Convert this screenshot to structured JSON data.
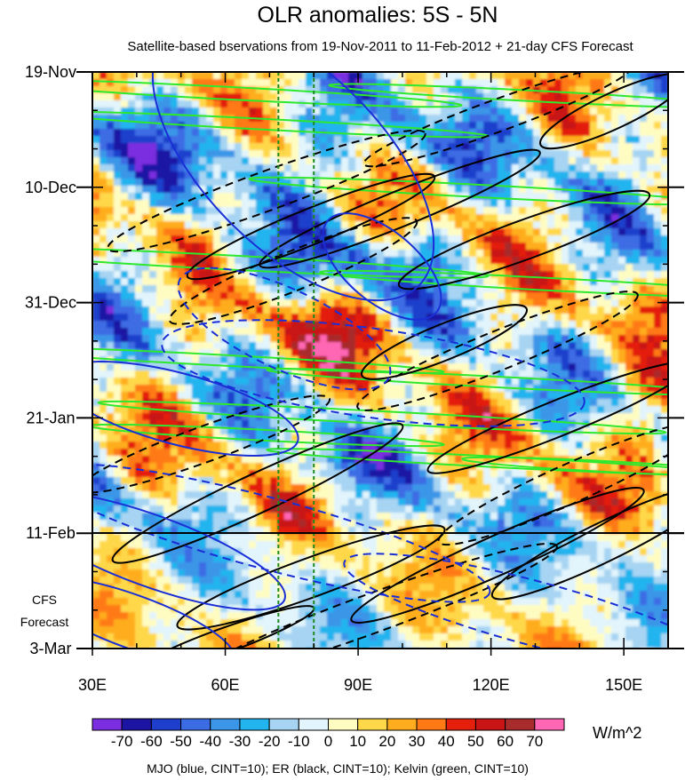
{
  "chart_data": {
    "type": "heatmap",
    "title": "OLR anomalies: 5S - 5N",
    "subtitle": "Satellite-based bservations from 19-Nov-2011 to 11-Feb-2012 + 21-day CFS Forecast",
    "x_axis": {
      "range_deg_east": [
        30,
        160
      ],
      "ticks": [
        {
          "value": 30,
          "label": "30E"
        },
        {
          "value": 60,
          "label": "60E"
        },
        {
          "value": 90,
          "label": "90E"
        },
        {
          "value": 120,
          "label": "120E"
        },
        {
          "value": 150,
          "label": "150E"
        }
      ]
    },
    "y_axis": {
      "range": [
        "2011-11-19",
        "2012-03-03"
      ],
      "reversed": true,
      "ticks": [
        {
          "date": "2011-11-19",
          "label": "19-Nov"
        },
        {
          "date": "2011-12-10",
          "label": "10-Dec"
        },
        {
          "date": "2011-12-31",
          "label": "31-Dec"
        },
        {
          "date": "2012-01-21",
          "label": "21-Jan"
        },
        {
          "date": "2012-02-11",
          "label": "11-Feb"
        },
        {
          "date": "2012-03-03",
          "label": "3-Mar"
        }
      ]
    },
    "forecast_start": "2012-02-11",
    "forecast_label": [
      "CFS",
      "Forecast"
    ],
    "reference_longitudes": [
      72,
      80
    ],
    "colorbar": {
      "unit": "W/m^2",
      "boundaries": [
        "-70",
        "-60",
        "-50",
        "-40",
        "-30",
        "-20",
        "-10",
        "0",
        "10",
        "20",
        "30",
        "40",
        "50",
        "60",
        "70"
      ],
      "colors": [
        "#7a2ee0",
        "#1c15a4",
        "#1e3fcc",
        "#3c6ce4",
        "#3b96e8",
        "#22b4ee",
        "#a6d4f2",
        "#e2f4fc",
        "#fffcc2",
        "#ffd849",
        "#ffad1e",
        "#ff7a15",
        "#e41f0c",
        "#c81414",
        "#a82c2c",
        "#ff66b3"
      ]
    },
    "overlays": {
      "legend_text": "MJO (blue, CINT=10); ER (black, CINT=10); Kelvin (green, CINT=10)",
      "contour_colors": {
        "mjo": "#1a2fd6",
        "er": "#000000",
        "kelvin": "#2ee82e"
      }
    }
  }
}
